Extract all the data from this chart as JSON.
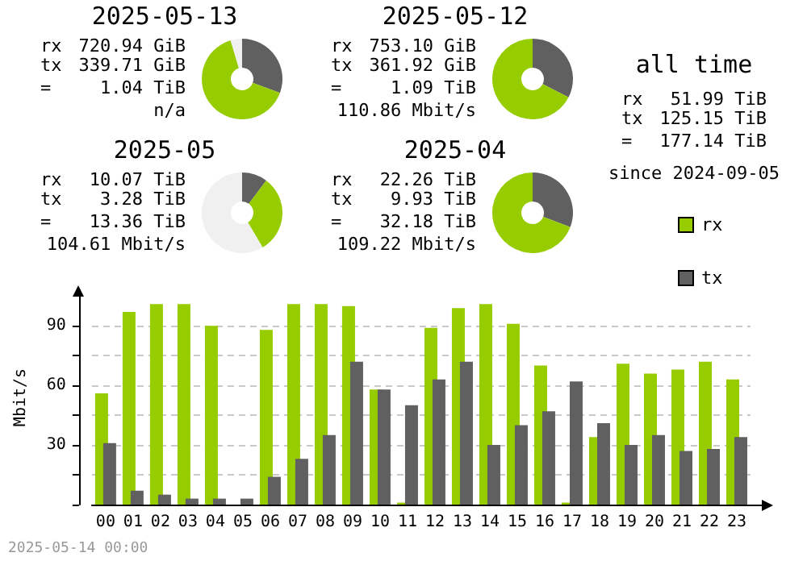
{
  "chart_data": [
    {
      "type": "donut",
      "title": "2025-05-13",
      "categories": [
        null,
        null,
        null
      ],
      "values": [
        30.6,
        64.8,
        4.6
      ],
      "colors": [
        "#606060",
        "#96cc00",
        "#f0f0f0"
      ],
      "legend": false,
      "annotations": [
        "rx",
        "720.94 GiB",
        "tx",
        "339.71 GiB",
        "=",
        "1.04 TiB",
        "n/a"
      ]
    },
    {
      "type": "donut",
      "title": "2025-05-12",
      "categories": [
        null,
        null
      ],
      "values": [
        32.5,
        67.5
      ],
      "colors": [
        "#606060",
        "#96cc00"
      ],
      "legend": false,
      "annotations": [
        "rx",
        "753.10 GiB",
        "tx",
        "361.92 GiB",
        "=",
        "1.09 TiB",
        "110.86 Mbit/s"
      ]
    },
    {
      "type": "donut",
      "title": "2025-05",
      "categories": [
        null,
        null,
        null
      ],
      "values": [
        10.2,
        31.3,
        58.5
      ],
      "colors": [
        "#606060",
        "#96cc00",
        "#f0f0f0"
      ],
      "legend": false,
      "annotations": [
        "rx",
        "10.07 TiB",
        "tx",
        "3.28 TiB",
        "=",
        "13.36 TiB",
        "104.61 Mbit/s"
      ]
    },
    {
      "type": "donut",
      "title": "2025-04",
      "categories": [
        null,
        null
      ],
      "values": [
        30.8,
        69.2
      ],
      "colors": [
        "#606060",
        "#96cc00"
      ],
      "legend": false,
      "annotations": [
        "rx",
        "22.26 TiB",
        "tx",
        "9.93 TiB",
        "=",
        "32.18 TiB",
        "109.22 Mbit/s"
      ]
    },
    {
      "type": "other",
      "title": "all time",
      "annotations": [
        "rx",
        "51.99 TiB",
        "tx",
        "125.15 TiB",
        "=",
        "177.14 TiB",
        "since 2024-09-05"
      ]
    },
    {
      "type": "bar",
      "categories": [
        "00",
        "01",
        "02",
        "03",
        "04",
        "05",
        "06",
        "07",
        "08",
        "09",
        "10",
        "11",
        "12",
        "13",
        "14",
        "15",
        "16",
        "17",
        "18",
        "19",
        "20",
        "21",
        "22",
        "23"
      ],
      "series": [
        {
          "name": "rx",
          "color": "#96cc00",
          "values": [
            56,
            97,
            101,
            101,
            90,
            0,
            88,
            101,
            101,
            100,
            58,
            1,
            89,
            99,
            101,
            91,
            70,
            1,
            34,
            71,
            66,
            68,
            72,
            63
          ]
        },
        {
          "name": "tx",
          "color": "#606060",
          "values": [
            31,
            7,
            5,
            3,
            3,
            3,
            14,
            23,
            35,
            72,
            58,
            50,
            63,
            72,
            30,
            40,
            47,
            62,
            41,
            30,
            35,
            27,
            28,
            34
          ]
        }
      ],
      "ylabel": "Mbit/s",
      "ylim": [
        0,
        108
      ],
      "yticks": [
        {
          "value": 0,
          "label": null
        },
        {
          "value": 15,
          "label": null
        },
        30,
        {
          "value": 45,
          "label": null
        },
        60,
        {
          "value": 75,
          "label": null
        },
        90
      ],
      "grid": "y",
      "legend": "top right",
      "annotations": [
        "2025-05-14 00:00"
      ]
    }
  ]
}
